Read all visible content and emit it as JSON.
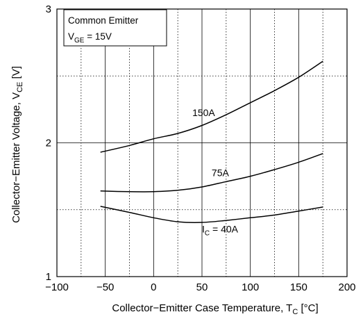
{
  "chart_data": {
    "type": "line",
    "title": "",
    "xlabel": "Collector−Emitter Case Temperature, T",
    "xlabel_sub": "C",
    "xlabel_unit": " [°C]",
    "ylabel": "Collector−Emitter Voltage, V",
    "ylabel_sub": "CE",
    "ylabel_unit": " [V]",
    "xlim": [
      -100,
      200
    ],
    "ylim": [
      1,
      3
    ],
    "x_ticks": [
      -100,
      -50,
      0,
      50,
      100,
      150,
      200
    ],
    "x_tick_labels": [
      "−100",
      "−50",
      "0",
      "50",
      "100",
      "150",
      "200"
    ],
    "y_ticks": [
      1,
      2,
      3
    ],
    "y_tick_labels": [
      "1",
      "2",
      "3"
    ],
    "x_grid_minor": [
      -75,
      -25,
      25,
      75,
      125,
      175
    ],
    "y_grid_minor": [
      1.5,
      2.5
    ],
    "grid": true,
    "legend": {
      "placement": "top-left",
      "line1": "Common Emitter",
      "line2_main": "V",
      "line2_sub": "GE",
      "line2_rest": " = 15V"
    },
    "series": [
      {
        "name": "150A",
        "label_main": "150A",
        "label_sub": "",
        "label_rest": "",
        "label_at": [
          40,
          2.2
        ],
        "x": [
          -55,
          -25,
          0,
          25,
          50,
          75,
          100,
          125,
          150,
          175
        ],
        "y": [
          1.93,
          1.98,
          2.03,
          2.07,
          2.13,
          2.21,
          2.3,
          2.39,
          2.49,
          2.61
        ]
      },
      {
        "name": "75A",
        "label_main": "75A",
        "label_sub": "",
        "label_rest": "",
        "label_at": [
          60,
          1.75
        ],
        "x": [
          -55,
          -25,
          0,
          25,
          50,
          75,
          100,
          125,
          150,
          175
        ],
        "y": [
          1.64,
          1.635,
          1.635,
          1.645,
          1.67,
          1.71,
          1.75,
          1.8,
          1.855,
          1.92
        ]
      },
      {
        "name": "IC = 40A",
        "label_main": "I",
        "label_sub": "C",
        "label_rest": " = 40A",
        "label_at": [
          50,
          1.33
        ],
        "x": [
          -55,
          -25,
          0,
          25,
          50,
          75,
          100,
          125,
          150,
          175
        ],
        "y": [
          1.525,
          1.48,
          1.44,
          1.41,
          1.405,
          1.42,
          1.44,
          1.46,
          1.49,
          1.52
        ]
      }
    ]
  }
}
